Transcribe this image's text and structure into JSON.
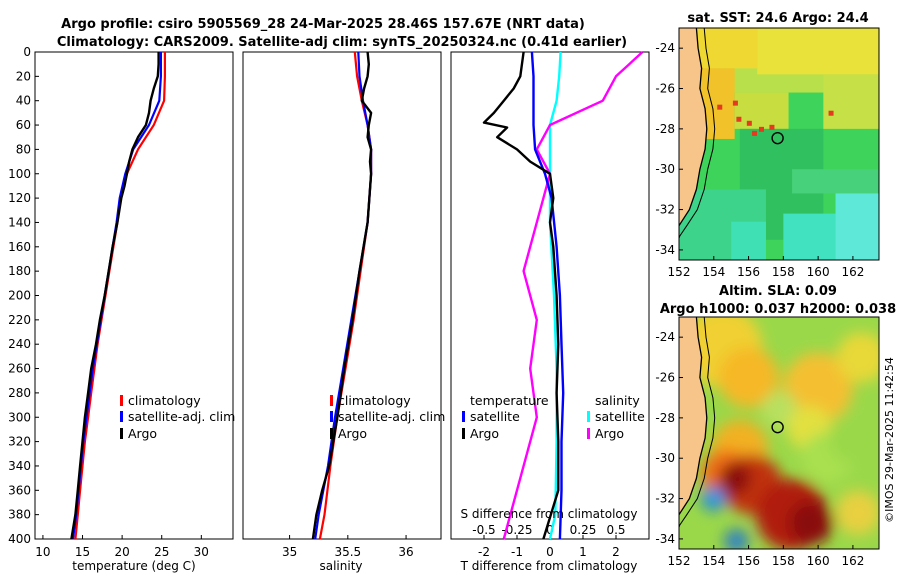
{
  "titles": {
    "line1": "Argo profile: csiro 5905569_28 24-Mar-2025 28.46S 157.67E (NRT data)",
    "line2": "Climatology: CARS2009. Satellite-adj clim: synTS_20250324.nc (0.41d earlier)",
    "sst": "sat. SST: 24.6 Argo: 24.4",
    "sla1": "Altim. SLA: 0.09",
    "sla2": "Argo h1000: 0.037 h2000: 0.038"
  },
  "stamp": "©IMOS 29-Mar-2025 11:42:54",
  "colors": {
    "climatology": "#ff0000",
    "satellite": "#0000ff",
    "argo": "#000000",
    "sal_sat": "#00ffff",
    "sal_argo": "#ff00ff",
    "land": "#f7c48a"
  },
  "depth_ticks": [
    "0",
    "20",
    "40",
    "60",
    "80",
    "100",
    "120",
    "140",
    "160",
    "180",
    "200",
    "220",
    "240",
    "260",
    "280",
    "300",
    "320",
    "340",
    "360",
    "380",
    "400"
  ],
  "chart_data": [
    {
      "type": "line",
      "title": "",
      "xlabel": "temperature (deg C)",
      "ylabel": "",
      "xlim": [
        9,
        34
      ],
      "ylim": [
        400,
        0
      ],
      "xticks": [
        "10",
        "15",
        "20",
        "25",
        "30"
      ],
      "legend": [
        "climatology",
        "satellite-adj. clim",
        "Argo"
      ],
      "series": [
        {
          "name": "climatology",
          "depth": [
            0,
            20,
            40,
            60,
            80,
            100,
            120,
            140,
            160,
            180,
            200,
            220,
            240,
            260,
            280,
            300,
            320,
            340,
            360,
            380,
            400
          ],
          "values": [
            25.4,
            25.4,
            25.3,
            24.0,
            22.0,
            20.6,
            19.8,
            19.4,
            18.9,
            18.4,
            17.9,
            17.4,
            16.9,
            16.5,
            16.1,
            15.7,
            15.3,
            15.0,
            14.7,
            14.4,
            14.1
          ]
        },
        {
          "name": "satellite-adj. clim",
          "depth": [
            0,
            20,
            40,
            60,
            80,
            100,
            120,
            140,
            160,
            180,
            200,
            220,
            240,
            260,
            280,
            300,
            320,
            340,
            360,
            380,
            400
          ],
          "values": [
            24.9,
            24.9,
            24.7,
            23.4,
            21.4,
            20.4,
            19.7,
            19.3,
            18.8,
            18.3,
            17.8,
            17.3,
            16.8,
            16.3,
            15.9,
            15.5,
            15.1,
            14.8,
            14.5,
            14.2,
            13.8
          ]
        },
        {
          "name": "Argo",
          "depth": [
            0,
            10,
            20,
            30,
            40,
            50,
            60,
            70,
            80,
            90,
            100,
            110,
            120,
            140,
            160,
            180,
            200,
            220,
            240,
            260,
            280,
            300,
            320,
            340,
            360,
            380,
            400
          ],
          "values": [
            24.6,
            24.6,
            24.5,
            24.0,
            23.6,
            23.4,
            23.0,
            22.0,
            21.3,
            20.9,
            20.6,
            20.3,
            19.9,
            19.4,
            18.8,
            18.3,
            17.8,
            17.2,
            16.7,
            16.1,
            15.7,
            15.3,
            15.0,
            14.7,
            14.4,
            14.1,
            13.6
          ]
        }
      ]
    },
    {
      "type": "line",
      "title": "",
      "xlabel": "salinity",
      "ylabel": "",
      "xlim": [
        34.6,
        36.3
      ],
      "ylim": [
        400,
        0
      ],
      "xticks": [
        "35",
        "35.5",
        "36"
      ],
      "legend": [
        "climatology",
        "satellite-adj. clim",
        "Argo"
      ],
      "series": [
        {
          "name": "climatology",
          "depth": [
            0,
            20,
            40,
            60,
            80,
            100,
            140,
            180,
            220,
            260,
            300,
            340,
            380,
            400
          ],
          "values": [
            35.56,
            35.58,
            35.62,
            35.67,
            35.7,
            35.7,
            35.67,
            35.61,
            35.55,
            35.48,
            35.41,
            35.35,
            35.3,
            35.26
          ]
        },
        {
          "name": "satellite-adj. clim",
          "depth": [
            0,
            20,
            40,
            60,
            80,
            100,
            140,
            180,
            220,
            260,
            300,
            340,
            380,
            400
          ],
          "values": [
            35.59,
            35.6,
            35.63,
            35.67,
            35.7,
            35.7,
            35.67,
            35.6,
            35.53,
            35.46,
            35.39,
            35.33,
            35.25,
            35.22
          ]
        },
        {
          "name": "Argo",
          "depth": [
            0,
            10,
            20,
            30,
            40,
            50,
            60,
            70,
            80,
            90,
            100,
            140,
            180,
            220,
            260,
            300,
            340,
            360,
            380,
            400
          ],
          "values": [
            35.67,
            35.68,
            35.67,
            35.64,
            35.62,
            35.7,
            35.68,
            35.67,
            35.7,
            35.69,
            35.7,
            35.67,
            35.6,
            35.54,
            35.47,
            35.41,
            35.34,
            35.28,
            35.23,
            35.2
          ]
        }
      ]
    },
    {
      "type": "line",
      "title": "",
      "xlabel": "T difference from climatology",
      "ylabel": "",
      "xlim": [
        -3,
        3
      ],
      "ylim": [
        400,
        0
      ],
      "xticks": [
        "-2",
        "-1",
        "0",
        "1",
        "2"
      ],
      "secondary_xlabel": "S difference from climatology",
      "secondary_xticks": [
        "-0.5",
        "-0.25",
        "0",
        "0.25",
        "0.5"
      ],
      "legend": [
        "temperature",
        "satellite",
        "Argo",
        "salinity",
        "satellite",
        "Argo"
      ],
      "series": [
        {
          "name": "temperature satellite",
          "depth": [
            0,
            20,
            40,
            60,
            80,
            100,
            120,
            160,
            200,
            240,
            280,
            320,
            360,
            400
          ],
          "values": [
            -0.55,
            -0.5,
            -0.5,
            -0.5,
            -0.45,
            -0.15,
            0.05,
            0.2,
            0.3,
            0.35,
            0.4,
            0.35,
            0.35,
            0.3
          ]
        },
        {
          "name": "temperature Argo",
          "depth": [
            0,
            20,
            30,
            40,
            50,
            58,
            62,
            70,
            80,
            90,
            100,
            120,
            140,
            160,
            200,
            240,
            280,
            320,
            360,
            400
          ],
          "values": [
            -0.8,
            -0.9,
            -1.1,
            -1.4,
            -1.7,
            -2.0,
            -1.3,
            -1.6,
            -1.0,
            -0.6,
            0.0,
            0.1,
            0.0,
            0.1,
            0.2,
            0.25,
            0.2,
            0.25,
            0.25,
            -0.2
          ]
        },
        {
          "name": "salinity satellite",
          "depth": [
            0,
            20,
            40,
            60,
            80,
            100,
            140,
            200,
            260,
            320,
            380,
            400
          ],
          "values": [
            0.08,
            0.07,
            0.05,
            0.0,
            0.0,
            0.0,
            0.0,
            0.03,
            0.05,
            0.05,
            0.04,
            0.0
          ]
        },
        {
          "name": "salinity Argo",
          "depth": [
            0,
            10,
            20,
            40,
            60,
            80,
            100,
            140,
            180,
            220,
            260,
            300,
            340,
            380,
            400
          ],
          "values": [
            0.7,
            0.6,
            0.5,
            0.4,
            0.0,
            -0.1,
            0.0,
            -0.1,
            -0.2,
            -0.1,
            -0.15,
            -0.1,
            -0.2,
            -0.3,
            -0.35
          ]
        }
      ]
    },
    {
      "type": "heatmap",
      "title": "sat. SST: 24.6 Argo: 24.4",
      "xlim": [
        152,
        163.5
      ],
      "ylim": [
        -34.5,
        -23
      ],
      "xticks": [
        "152",
        "154",
        "156",
        "158",
        "160",
        "162"
      ],
      "yticks": [
        "-24",
        "-26",
        "-28",
        "-30",
        "-32",
        "-34"
      ],
      "marker": {
        "lon": 157.67,
        "lat": -28.46
      }
    },
    {
      "type": "heatmap",
      "title": "Altim. SLA: 0.09",
      "xlim": [
        152,
        163.5
      ],
      "ylim": [
        -34.5,
        -23
      ],
      "xticks": [
        "152",
        "154",
        "156",
        "158",
        "160",
        "162"
      ],
      "yticks": [
        "-24",
        "-26",
        "-28",
        "-30",
        "-32",
        "-34"
      ],
      "marker": {
        "lon": 157.67,
        "lat": -28.46
      }
    }
  ]
}
